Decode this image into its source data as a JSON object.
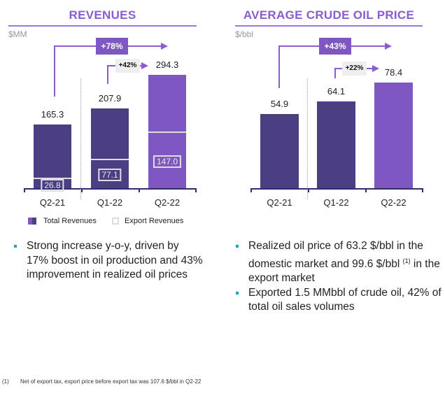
{
  "chart_data": [
    {
      "type": "bar",
      "id": "rev",
      "title": "REVENUES",
      "ylabel": "$MM",
      "categories": [
        "Q2-21",
        "Q1-22",
        "Q2-22"
      ],
      "series": [
        {
          "name": "Total Revenues",
          "values": [
            165.3,
            207.9,
            294.3
          ]
        },
        {
          "name": "Export Revenues",
          "values": [
            26.8,
            77.1,
            147.0
          ]
        }
      ],
      "value_labels": [
        "165.3",
        "207.9",
        "294.3"
      ],
      "export_labels": [
        "26.8",
        "77.1",
        "147.0"
      ],
      "colors": [
        "#4B3F82",
        "#4B3F82",
        "#7E57C2"
      ],
      "annotations": [
        {
          "text": "+78%",
          "from": "Q2-21",
          "to": "Q2-22"
        },
        {
          "text": "+42%",
          "from": "Q1-22",
          "to": "Q2-22"
        }
      ],
      "legend": [
        "Total Revenues",
        "Export Revenues"
      ],
      "legend_position": "bottom"
    },
    {
      "type": "bar",
      "id": "oil",
      "title": "AVERAGE CRUDE OIL PRICE",
      "ylabel": "$/bbl",
      "categories": [
        "Q2-21",
        "Q1-22",
        "Q2-22"
      ],
      "values": [
        54.9,
        64.1,
        78.4
      ],
      "value_labels": [
        "54.9",
        "64.1",
        "78.4"
      ],
      "colors": [
        "#4B3F82",
        "#4B3F82",
        "#7E57C2"
      ],
      "annotations": [
        {
          "text": "+43%",
          "from": "Q2-21",
          "to": "Q2-22"
        },
        {
          "text": "+22%",
          "from": "Q1-22",
          "to": "Q2-22"
        }
      ]
    }
  ],
  "bullets_left": [
    "Strong increase y-o-y, driven by 17% boost in oil production and 43% improvement in realized oil prices"
  ],
  "bullets_right": {
    "b1_text": "Realized oil price of 63.2 $/bbl in the domestic market and 99.6 $/bbl",
    "b1_sup": "(1)",
    "b1_tail": "in the export market",
    "b2": "Exported 1.5 MMbbl of crude oil, 42% of total oil sales volumes"
  },
  "footnote": {
    "marker": "(1)",
    "text": "Net of export tax, export price before export tax was 107.6 $/bbl in Q2-22"
  }
}
